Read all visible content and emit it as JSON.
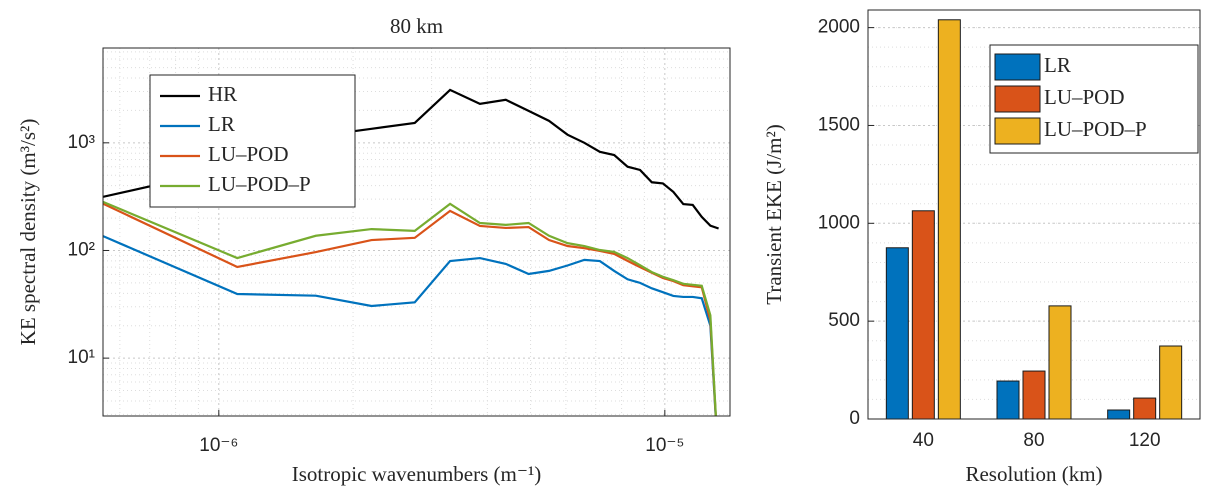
{
  "chart_data": [
    {
      "type": "line",
      "title": "80 km",
      "x_label": "Isotropic wavenumbers (m⁻¹)",
      "y_label": "KE spectral density (m³/s²)",
      "xscale": "log",
      "yscale": "log",
      "grid": true,
      "minor_grid": true,
      "legend": "upper left",
      "xlim": [
        5.5e-07,
        1.4e-05
      ],
      "ylim": [
        2.9,
        7600
      ],
      "xticks": [
        {
          "value": 1e-06,
          "label": "10⁻⁶"
        },
        {
          "value": 1e-05,
          "label": "10⁻⁵"
        }
      ],
      "yticks": [
        {
          "value": 10,
          "label": "10¹"
        },
        {
          "value": 100,
          "label": "10²"
        },
        {
          "value": 1000,
          "label": "10³"
        }
      ],
      "x": [
        5.5e-07,
        1.1e-06,
        1.65e-06,
        2.2e-06,
        2.75e-06,
        3.3e-06,
        3.85e-06,
        4.4e-06,
        4.95e-06,
        5.5e-06,
        6.05e-06,
        6.6e-06,
        7.15e-06,
        7.7e-06,
        8.25e-06,
        8.8e-06,
        9.35e-06,
        9.9e-06,
        1.045e-05,
        1.1e-05,
        1.155e-05,
        1.21e-05,
        1.265e-05,
        1.32e-05
      ],
      "series": [
        {
          "name": "HR",
          "color": "#000000",
          "values": [
            315,
            600,
            1150,
            1350,
            1530,
            3100,
            2300,
            2510,
            1980,
            1600,
            1190,
            1000,
            825,
            770,
            600,
            560,
            430,
            420,
            350,
            270,
            265,
            205,
            170,
            160
          ]
        },
        {
          "name": "LR",
          "color": "#0072BD",
          "values": [
            136,
            39.4,
            38,
            30.5,
            33,
            79.7,
            85,
            75,
            60.5,
            64.6,
            72.5,
            81.8,
            79.7,
            64.6,
            54,
            50,
            44.5,
            41,
            37.8,
            37,
            37,
            36,
            20,
            1
          ]
        },
        {
          "name": "LU–POD",
          "color": "#D95319",
          "values": [
            272,
            70.3,
            96.6,
            125,
            131,
            233,
            169,
            162,
            165,
            125,
            110,
            105,
            99,
            93,
            80,
            70,
            62,
            55.5,
            52,
            47.6,
            46.5,
            45.5,
            22.5,
            1
          ]
        },
        {
          "name": "LU–POD–P",
          "color": "#77AC30",
          "values": [
            283,
            85,
            137,
            158,
            152,
            271,
            180,
            173,
            180,
            137,
            117,
            110,
            101,
            97,
            85,
            73,
            63,
            57,
            53,
            49,
            48,
            47,
            25,
            1
          ]
        }
      ]
    },
    {
      "type": "bar",
      "x_label": "Resolution (km)",
      "y_label": "Transient EKE (J/m²)",
      "grid": true,
      "minor_grid": true,
      "legend": "upper right",
      "categories": [
        "40",
        "80",
        "120"
      ],
      "ylim": [
        0,
        2090
      ],
      "yticks": [
        0,
        500,
        1000,
        1500,
        2000
      ],
      "series": [
        {
          "name": "LR",
          "color": "#0072BD",
          "values": [
            875,
            194,
            46
          ]
        },
        {
          "name": "LU–POD",
          "color": "#D95319",
          "values": [
            1064,
            245,
            107
          ]
        },
        {
          "name": "LU–POD–P",
          "color": "#EDB120",
          "values": [
            2040,
            578,
            373
          ]
        }
      ]
    }
  ]
}
